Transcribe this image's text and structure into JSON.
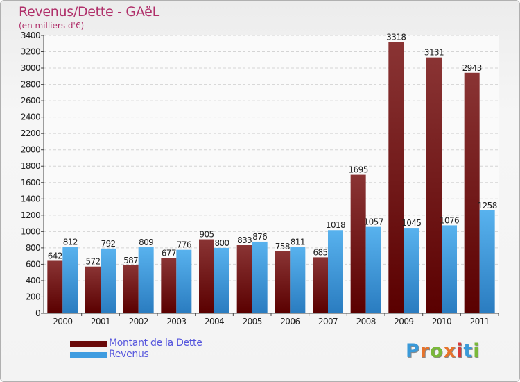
{
  "title": "Revenus/Dette - GAëL",
  "subtitle": "(en milliers d'€)",
  "logo": {
    "text": "Proxiti",
    "colors": [
      "#3a9ad9",
      "#e8732a",
      "#7ab83a",
      "#e8732a",
      "#d93a3a",
      "#3a9ad9",
      "#7ab83a"
    ]
  },
  "legend": [
    {
      "label": "Montant de la Dette",
      "color": "#6a0a0a"
    },
    {
      "label": "Revenus",
      "color": "#3e9ce0"
    }
  ],
  "chart_data": {
    "type": "bar",
    "categories": [
      "2000",
      "2001",
      "2002",
      "2003",
      "2004",
      "2005",
      "2006",
      "2007",
      "2008",
      "2009",
      "2010",
      "2011"
    ],
    "series": [
      {
        "name": "Montant de la Dette",
        "values": [
          642,
          572,
          587,
          677,
          905,
          833,
          758,
          685,
          1695,
          3318,
          3131,
          2943
        ]
      },
      {
        "name": "Revenus",
        "values": [
          812,
          792,
          809,
          776,
          800,
          876,
          811,
          1018,
          1057,
          1045,
          1076,
          1258
        ]
      }
    ],
    "yticks": [
      0,
      200,
      400,
      600,
      800,
      1000,
      1200,
      1400,
      1600,
      1800,
      2000,
      2200,
      2400,
      2600,
      2800,
      3000,
      3200,
      3400
    ],
    "ylim": [
      0,
      3400
    ],
    "grid": true,
    "legend_position": "bottom-left"
  }
}
